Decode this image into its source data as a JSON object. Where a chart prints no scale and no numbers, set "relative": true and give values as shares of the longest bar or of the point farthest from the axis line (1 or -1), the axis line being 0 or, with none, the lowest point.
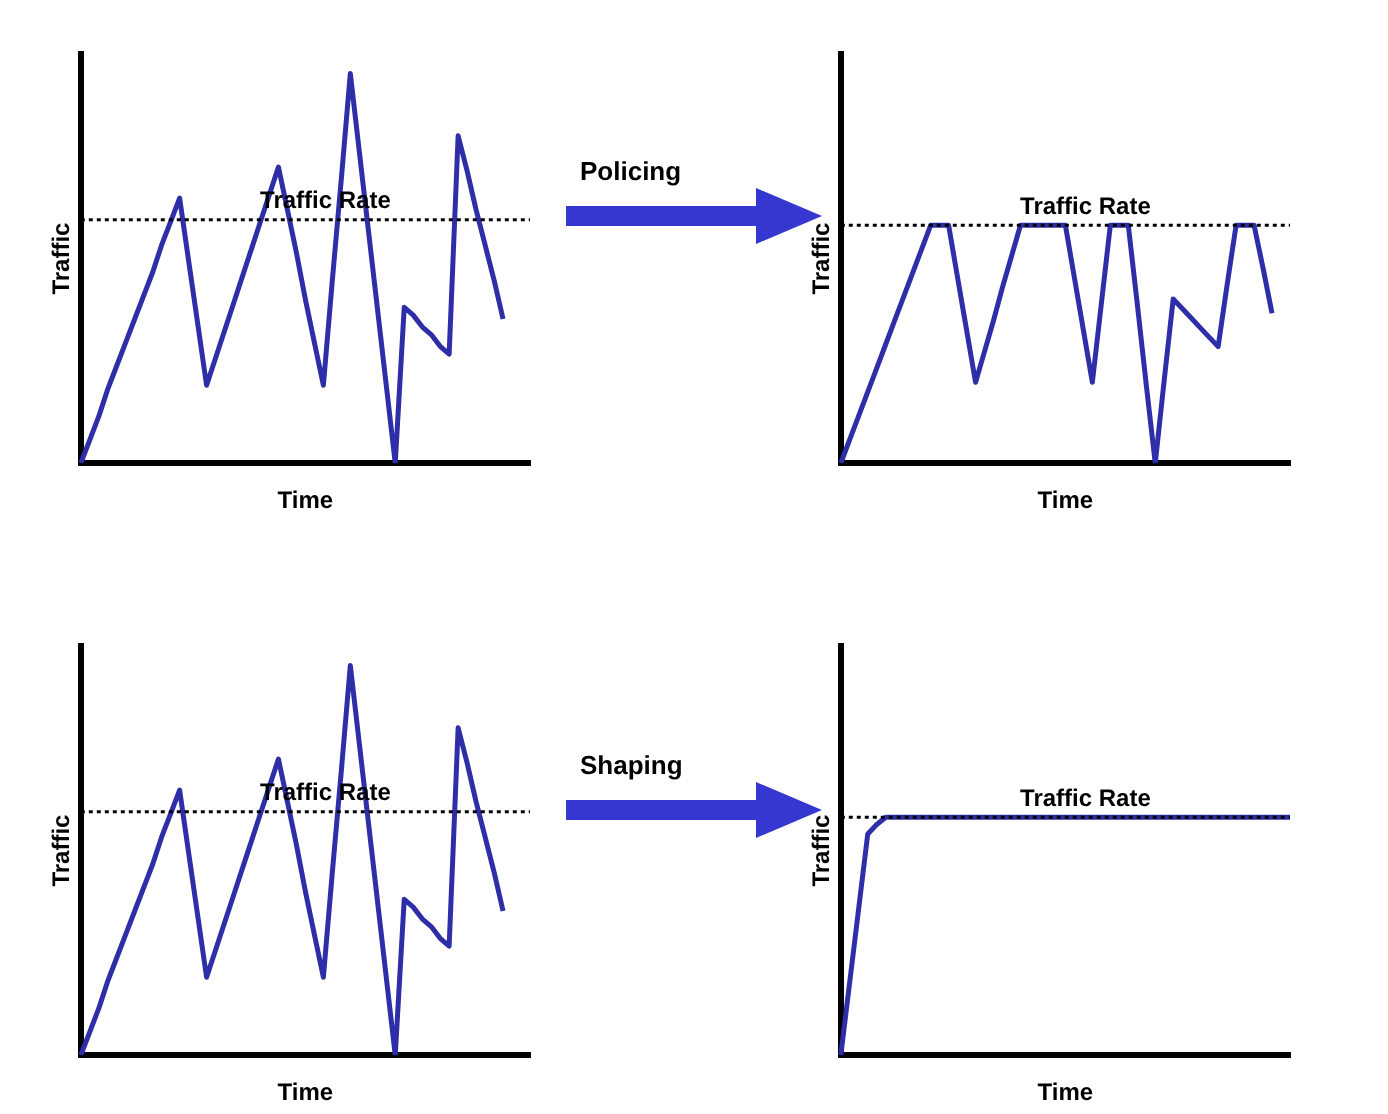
{
  "chart_data": [
    {
      "type": "line",
      "relative": true,
      "xlabel": "Time",
      "ylabel": "Traffic",
      "tick_labels": false,
      "grid": false,
      "annotations": [
        "Policing"
      ],
      "categories": [
        null,
        null,
        null,
        null,
        null,
        null,
        null,
        null,
        null,
        null,
        null,
        null,
        null,
        null,
        null,
        null,
        null,
        null,
        null,
        null,
        null,
        null,
        null,
        null,
        null,
        null,
        null,
        null,
        null,
        null,
        null,
        null,
        null,
        null,
        null,
        null,
        null,
        null,
        null,
        null,
        null,
        null,
        null,
        null,
        null,
        null,
        null,
        null,
        null,
        null,
        null
      ],
      "series": [
        {
          "color": "#2e2ea8",
          "values": [
            0,
            0.06,
            0.12,
            0.19,
            0.25,
            0.31,
            0.37,
            0.43,
            0.49,
            0.56,
            0.62,
            0.68,
            0.52,
            0.36,
            0.2,
            0.27,
            0.34,
            0.41,
            0.48,
            0.55,
            0.62,
            0.69,
            0.76,
            0.65,
            0.54,
            0.42,
            0.31,
            0.2,
            0.47,
            0.73,
            1,
            0.8,
            0.6,
            0.4,
            0.2,
            0,
            0.4,
            0.38,
            0.35,
            0.33,
            0.3,
            0.28,
            0.84,
            0.75,
            0.65,
            0.56,
            0.47,
            0.37,
            null,
            null,
            null
          ]
        }
      ],
      "ref_lines": [
        {
          "axis": "y",
          "value": 0.625,
          "label": "Traffic Rate",
          "line_style": "dotted",
          "color": "#000000"
        }
      ]
    },
    {
      "type": "line",
      "relative": true,
      "xlabel": "Time",
      "ylabel": "Traffic",
      "tick_labels": false,
      "grid": false,
      "categories": [
        null,
        null,
        null,
        null,
        null,
        null,
        null,
        null,
        null,
        null,
        null,
        null,
        null,
        null,
        null,
        null,
        null,
        null,
        null,
        null,
        null,
        null,
        null,
        null,
        null,
        null,
        null,
        null,
        null,
        null,
        null,
        null,
        null,
        null,
        null,
        null,
        null,
        null,
        null,
        null,
        null,
        null,
        null,
        null,
        null,
        null,
        null,
        null,
        null,
        null,
        null
      ],
      "series": [
        {
          "color": "#2e2ea8",
          "values": [
            0,
            0.1,
            0.2,
            0.3,
            0.4,
            0.5,
            0.6,
            0.7,
            0.8,
            0.9,
            1,
            1,
            1,
            0.78,
            0.56,
            0.34,
            0.47,
            0.6,
            0.74,
            0.87,
            1,
            1,
            1,
            1,
            1,
            1,
            0.78,
            0.56,
            0.34,
            0.67,
            1,
            1,
            1,
            0.67,
            0.33,
            0,
            0.35,
            0.69,
            0.65,
            0.61,
            0.57,
            0.53,
            0.49,
            0.75,
            1,
            1,
            1,
            0.82,
            0.63,
            null,
            null
          ]
        }
      ],
      "ref_lines": [
        {
          "axis": "y",
          "value": 1,
          "label": "Traffic Rate",
          "line_style": "dotted",
          "color": "#000000"
        }
      ]
    },
    {
      "type": "line",
      "relative": true,
      "xlabel": "Time",
      "ylabel": "Traffic",
      "tick_labels": false,
      "grid": false,
      "annotations": [
        "Shaping"
      ],
      "categories": [
        null,
        null,
        null,
        null,
        null,
        null,
        null,
        null,
        null,
        null,
        null,
        null,
        null,
        null,
        null,
        null,
        null,
        null,
        null,
        null,
        null,
        null,
        null,
        null,
        null,
        null,
        null,
        null,
        null,
        null,
        null,
        null,
        null,
        null,
        null,
        null,
        null,
        null,
        null,
        null,
        null,
        null,
        null,
        null,
        null,
        null,
        null,
        null,
        null,
        null,
        null
      ],
      "series": [
        {
          "color": "#2e2ea8",
          "values": [
            0,
            0.06,
            0.12,
            0.19,
            0.25,
            0.31,
            0.37,
            0.43,
            0.49,
            0.56,
            0.62,
            0.68,
            0.52,
            0.36,
            0.2,
            0.27,
            0.34,
            0.41,
            0.48,
            0.55,
            0.62,
            0.69,
            0.76,
            0.65,
            0.54,
            0.42,
            0.31,
            0.2,
            0.47,
            0.73,
            1,
            0.8,
            0.6,
            0.4,
            0.2,
            0,
            0.4,
            0.38,
            0.35,
            0.33,
            0.3,
            0.28,
            0.84,
            0.75,
            0.65,
            0.56,
            0.47,
            0.37,
            null,
            null,
            null
          ]
        }
      ],
      "ref_lines": [
        {
          "axis": "y",
          "value": 0.625,
          "label": "Traffic Rate",
          "line_style": "dotted",
          "color": "#000000"
        }
      ]
    },
    {
      "type": "line",
      "relative": true,
      "xlabel": "Time",
      "ylabel": "Traffic",
      "tick_labels": false,
      "grid": false,
      "categories": [
        null,
        null,
        null,
        null,
        null,
        null,
        null,
        null,
        null,
        null,
        null,
        null,
        null,
        null,
        null,
        null,
        null,
        null,
        null,
        null,
        null,
        null,
        null,
        null,
        null,
        null,
        null,
        null,
        null,
        null,
        null,
        null,
        null,
        null,
        null,
        null,
        null,
        null,
        null,
        null,
        null,
        null,
        null,
        null,
        null,
        null,
        null,
        null,
        null,
        null,
        null
      ],
      "series": [
        {
          "color": "#2e2ea8",
          "values": [
            0,
            0.31,
            0.62,
            0.93,
            0.97,
            1,
            1,
            1,
            1,
            1,
            1,
            1,
            1,
            1,
            1,
            1,
            1,
            1,
            1,
            1,
            1,
            1,
            1,
            1,
            1,
            1,
            1,
            1,
            1,
            1,
            1,
            1,
            1,
            1,
            1,
            1,
            1,
            1,
            1,
            1,
            1,
            1,
            1,
            1,
            1,
            1,
            1,
            1,
            1,
            1,
            1
          ]
        }
      ],
      "ref_lines": [
        {
          "axis": "y",
          "value": 1,
          "label": "Traffic Rate",
          "line_style": "dotted",
          "color": "#000000"
        }
      ]
    }
  ]
}
